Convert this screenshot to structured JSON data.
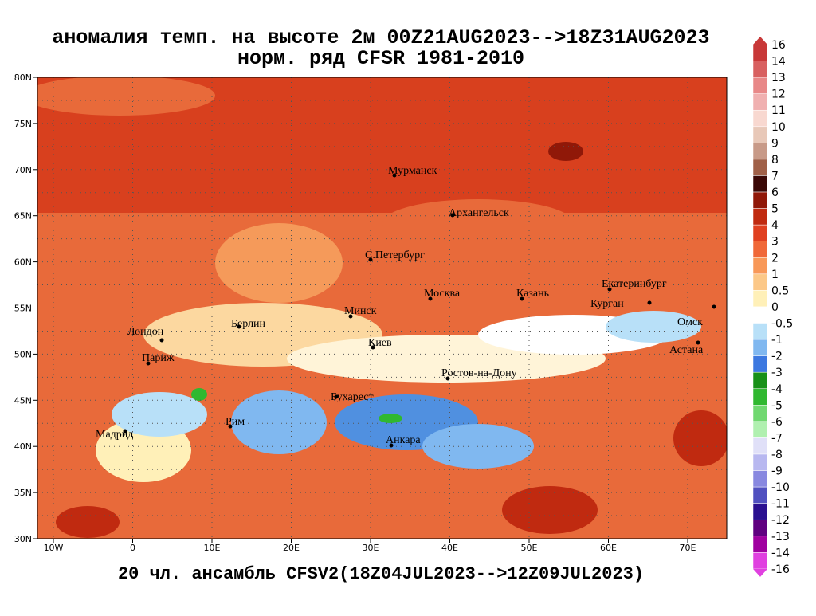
{
  "title": {
    "line1": "аномалия темп. на высоте 2м 00Z21AUG2023-->18Z31AUG2023",
    "line2": "норм. ряд CFSR 1981-2010"
  },
  "footer": "20 чл. ансамбль CFSV2(18Z04JUL2023-->12Z09JUL2023)",
  "map": {
    "lat_labels": [
      "80N",
      "75N",
      "70N",
      "65N",
      "60N",
      "55N",
      "50N",
      "45N",
      "40N",
      "35N",
      "30N"
    ],
    "lon_labels": [
      "10W",
      "0",
      "10E",
      "20E",
      "30E",
      "40E",
      "50E",
      "60E",
      "70E"
    ],
    "cities": [
      "Мурманск",
      "Архангельск",
      "С.Петербург",
      "Москва",
      "Казань",
      "Екатеринбург",
      "Курган",
      "Омск",
      "Астана",
      "Минск",
      "Берлин",
      "Лондон",
      "Париж",
      "Киев",
      "Ростов-на-Дону",
      "Бухарест",
      "Рим",
      "Мадрид",
      "Анкара"
    ]
  },
  "colorbar": {
    "labels": [
      "16",
      "14",
      "13",
      "12",
      "11",
      "10",
      "9",
      "8",
      "7",
      "6",
      "5",
      "4",
      "3",
      "2",
      "1",
      "0.5",
      "0",
      "-0.5",
      "-1",
      "-2",
      "-3",
      "-4",
      "-5",
      "-6",
      "-7",
      "-8",
      "-9",
      "-10",
      "-11",
      "-12",
      "-13",
      "-14",
      "-16"
    ],
    "colors": [
      "#c83838",
      "#d86060",
      "#e88888",
      "#f0b0b0",
      "#f8d8d0",
      "#e8c8b8",
      "#c89a88",
      "#a06048",
      "#3a0806",
      "#901808",
      "#c02a10",
      "#e04020",
      "#f06838",
      "#f89858",
      "#fcc888",
      "#fff0b8",
      "#ffffff",
      "#b8e0f8",
      "#80b8f0",
      "#3c78e0",
      "#189018",
      "#30b830",
      "#70d870",
      "#b0f0b0",
      "#e0e0f8",
      "#b8b8f0",
      "#8888e0",
      "#5050c0",
      "#2a1090",
      "#600080",
      "#a000a0",
      "#e040e0"
    ]
  }
}
